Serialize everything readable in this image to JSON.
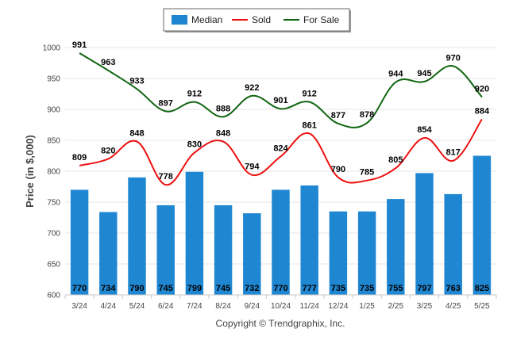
{
  "chart_data": {
    "type": "bar",
    "title": "",
    "xlabel": "",
    "ylabel": "Price (in $,000)",
    "ylim": [
      600,
      1000
    ],
    "yticks": [
      600,
      650,
      700,
      750,
      800,
      850,
      900,
      950,
      1000
    ],
    "grid": true,
    "legend_position": "top-center",
    "categories": [
      "3/24",
      "4/24",
      "5/24",
      "6/24",
      "7/24",
      "8/24",
      "9/24",
      "10/24",
      "11/24",
      "12/24",
      "1/25",
      "2/25",
      "3/25",
      "4/25",
      "5/25"
    ],
    "series": [
      {
        "name": "Median",
        "type": "bar",
        "color": "#1F87D2",
        "values": [
          770,
          734,
          790,
          745,
          799,
          745,
          732,
          770,
          777,
          735,
          735,
          755,
          797,
          763,
          825
        ]
      },
      {
        "name": "Sold",
        "type": "line",
        "color": "#EE1111",
        "values": [
          809,
          820,
          848,
          778,
          830,
          848,
          794,
          824,
          861,
          790,
          785,
          805,
          854,
          817,
          884
        ]
      },
      {
        "name": "For Sale",
        "type": "line",
        "color": "#116611",
        "values": [
          991,
          963,
          933,
          897,
          912,
          888,
          922,
          901,
          912,
          877,
          878,
          944,
          945,
          970,
          920
        ]
      }
    ]
  },
  "footer": {
    "copyright": "Copyright © Trendgraphix, Inc."
  }
}
